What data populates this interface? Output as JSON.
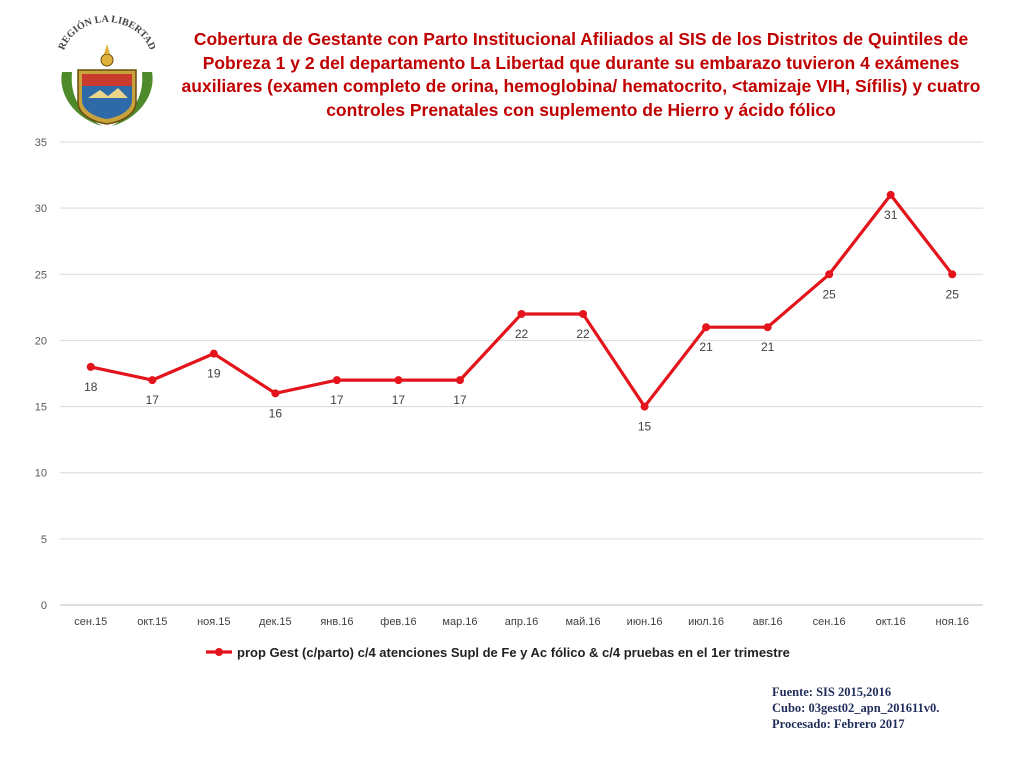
{
  "title": "Cobertura de Gestante con  Parto Institucional  Afiliados al SIS de los Distritos de Quintiles de Pobreza 1 y 2  del departamento La Libertad que durante su embarazo tuvieron 4 exámenes auxiliares (examen completo de orina, hemoglobina/ hematocrito, <tamizaje VIH, Sífilis) y cuatro controles Prenatales con suplemento de Hierro y ácido fólico",
  "logo": {
    "icon": "regional-coat-of-arms-icon",
    "text": "REGIÓN LA LIBERTAD"
  },
  "colors": {
    "series": "#e3141b",
    "title": "#c00000",
    "grid": "#d9d9d9",
    "source": "#1f2d5a"
  },
  "chart_data": {
    "type": "line",
    "categories": [
      "сен.15",
      "окт.15",
      "ноя.15",
      "дек.15",
      "янв.16",
      "фев.16",
      "мар.16",
      "апр.16",
      "май.16",
      "июн.16",
      "июл.16",
      "авг.16",
      "сен.16",
      "окт.16",
      "ноя.16"
    ],
    "series": [
      {
        "name": "prop Gest (c/parto) c/4 atenciones Supl de Fe y Ac fólico & c/4 pruebas en el 1er trimestre",
        "values": [
          18,
          17,
          19,
          16,
          17,
          17,
          17,
          22,
          22,
          15,
          21,
          21,
          25,
          31,
          25
        ]
      }
    ],
    "ylim": [
      0,
      35
    ],
    "yticks": [
      0,
      5,
      10,
      15,
      20,
      25,
      30,
      35
    ],
    "label_positions": [
      "below",
      "below",
      "below",
      "below",
      "below",
      "below",
      "below",
      "below",
      "below",
      "below",
      "below",
      "below",
      "below",
      "below",
      "below"
    ],
    "grid": true,
    "legend": "bottom"
  },
  "source": {
    "line1": "Fuente: SIS 2015,2016",
    "line2": "Cubo: 03gest02_apn_201611v0.",
    "line3": "Procesado: Febrero 2017"
  }
}
